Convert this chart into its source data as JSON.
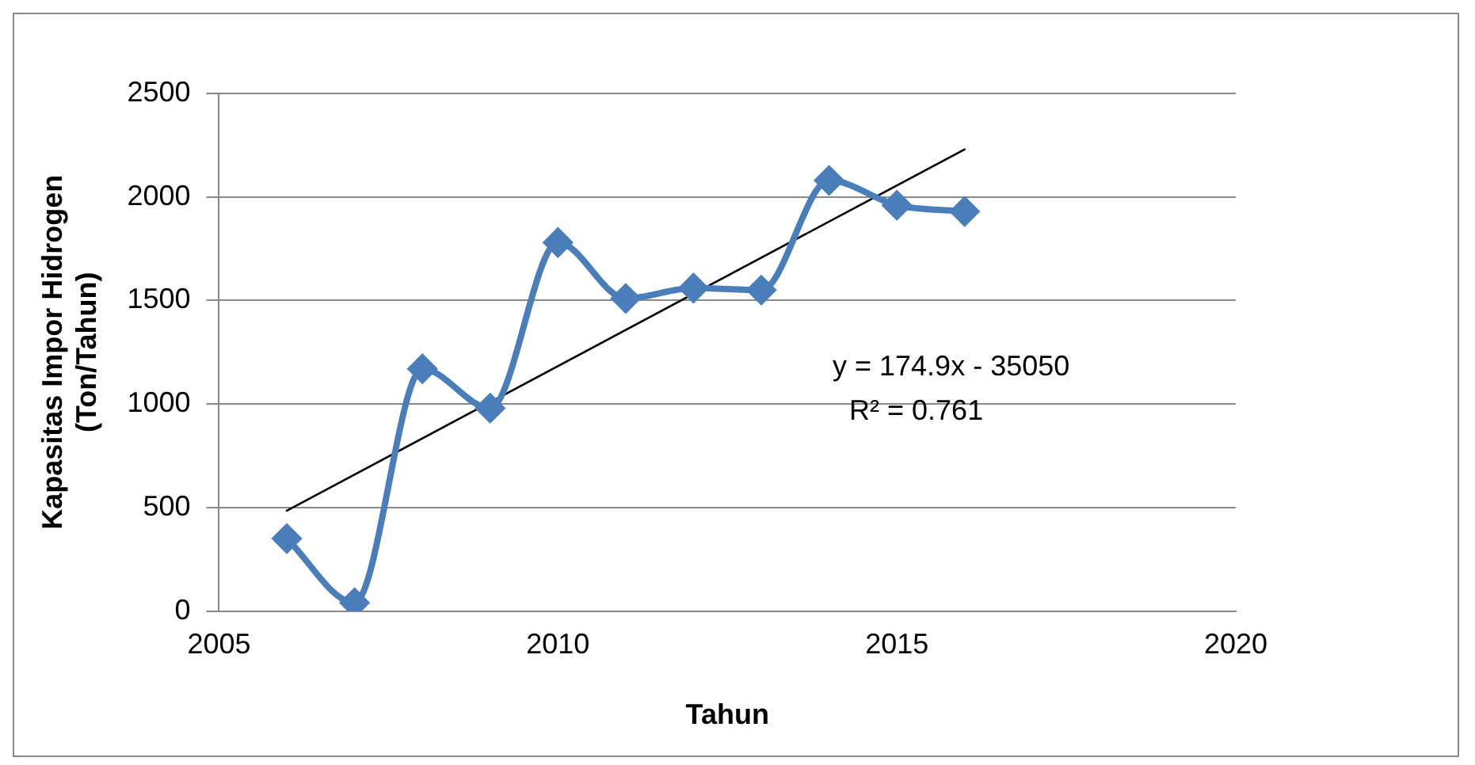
{
  "chart_data": {
    "type": "line",
    "xlabel": "Tahun",
    "ylabel": "Kapasitas Impor Hidrogen (Ton/Tahun)",
    "x": [
      2006,
      2007,
      2008,
      2009,
      2010,
      2011,
      2012,
      2013,
      2014,
      2015,
      2016
    ],
    "series": [
      {
        "color": "#4a7ebb",
        "marker": "diamond",
        "values": [
          350,
          40,
          1170,
          980,
          1780,
          1510,
          1560,
          1550,
          2080,
          1960,
          1930
        ]
      },
      {
        "color": "#000000",
        "marker": "none",
        "x": [
          2006,
          2016
        ],
        "values": [
          485,
          2230
        ]
      }
    ],
    "xlim": [
      2005,
      2020
    ],
    "xticks": [
      2005,
      2010,
      2015,
      2020
    ],
    "ylim": [
      0,
      2500
    ],
    "yticks": [
      0,
      500,
      1000,
      1500,
      2000,
      2500
    ],
    "grid": "y",
    "legend": false,
    "annotations": [
      "y = 174.9x - 35050",
      "R² = 0.761"
    ]
  }
}
